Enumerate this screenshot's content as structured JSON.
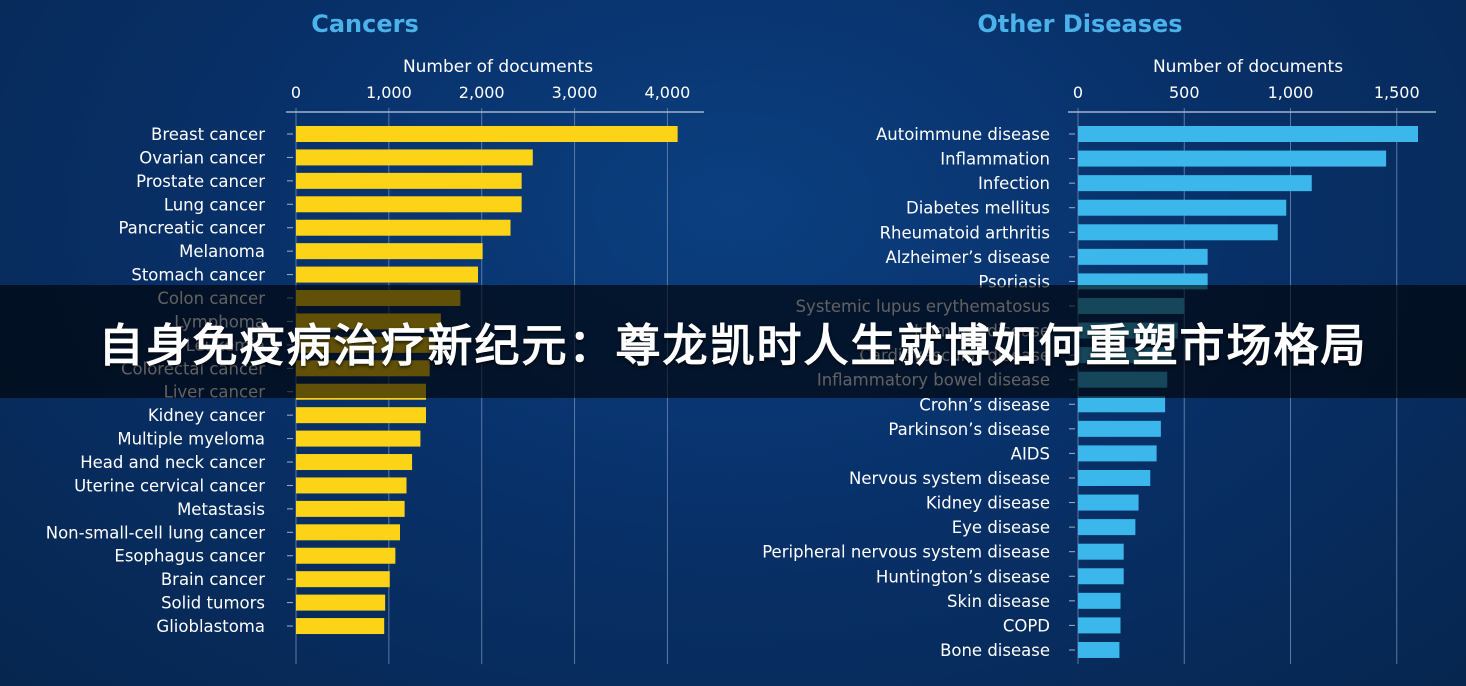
{
  "colors": {
    "background": "#08316a",
    "title": "#4cb3ea",
    "cancer_bar": "#fcd316",
    "disease_bar": "#3bb7ec",
    "text": "#ffffff",
    "grid": "#5a7aa6"
  },
  "banner": {
    "text": "自身免疫病治疗新纪元：尊龙凯时人生就博如何重塑市场格局"
  },
  "chart_data": [
    {
      "type": "bar",
      "orientation": "horizontal",
      "title": "Cancers",
      "xlabel": "Number of documents",
      "xlim": [
        0,
        4200
      ],
      "ticks": [
        0,
        1000,
        2000,
        3000,
        4000
      ],
      "tick_labels": [
        "0",
        "1,000",
        "2,000",
        "3,000",
        "4,000"
      ],
      "grid": true,
      "categories": [
        "Breast cancer",
        "Ovarian cancer",
        "Prostate cancer",
        "Lung cancer",
        "Pancreatic cancer",
        "Melanoma",
        "Stomach cancer",
        "Colon cancer",
        "Lymphoma",
        "Leukemia",
        "Colorectal cancer",
        "Liver cancer",
        "Kidney cancer",
        "Multiple myeloma",
        "Head and neck cancer",
        "Uterine cervical cancer",
        "Metastasis",
        "Non-small-cell lung cancer",
        "Esophagus cancer",
        "Brain cancer",
        "Solid tumors",
        "Glioblastoma"
      ],
      "values": [
        4110,
        2550,
        2430,
        2430,
        2310,
        2010,
        1960,
        1770,
        1560,
        1500,
        1440,
        1400,
        1400,
        1340,
        1250,
        1190,
        1170,
        1120,
        1070,
        1010,
        960,
        950
      ]
    },
    {
      "type": "bar",
      "orientation": "horizontal",
      "title": "Other Diseases",
      "xlabel": "Number of documents",
      "xlim": [
        0,
        1600
      ],
      "ticks": [
        0,
        500,
        1000,
        1500
      ],
      "tick_labels": [
        "0",
        "500",
        "1,000",
        "1,500"
      ],
      "grid": true,
      "categories": [
        "Autoimmune disease",
        "Inflammation",
        "Infection",
        "Diabetes mellitus",
        "Rheumatoid arthritis",
        "Alzheimer’s disease",
        "Psoriasis",
        "Systemic lupus erythematosus",
        "Immune disease",
        "Cardiovascular disease",
        "Inflammatory bowel disease",
        "Crohn’s disease",
        "Parkinson’s disease",
        "AIDS",
        "Nervous system disease",
        "Kidney disease",
        "Eye disease",
        "Peripheral nervous system disease",
        "Huntington’s disease",
        "Skin disease",
        "COPD",
        "Bone disease"
      ],
      "values": [
        1600,
        1450,
        1100,
        980,
        940,
        610,
        610,
        500,
        470,
        440,
        420,
        410,
        390,
        370,
        340,
        285,
        270,
        215,
        215,
        200,
        200,
        195
      ]
    }
  ]
}
